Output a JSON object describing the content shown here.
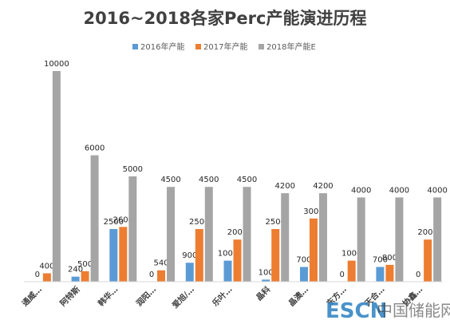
{
  "chart_data": {
    "type": "bar",
    "title": "2016~2018各家Perc产能演进历程",
    "categories": [
      "通威…",
      "阿特斯",
      "韩华…",
      "润阳…",
      "爱旭/…",
      "乐叶…",
      "晶科",
      "晶澳…",
      "东方…",
      "天合…",
      "协鑫…"
    ],
    "series": [
      {
        "name": "2016年产能",
        "values": [
          0,
          240,
          2500,
          0,
          900,
          1000,
          100,
          700,
          0,
          700,
          0
        ]
      },
      {
        "name": "2017年产能",
        "values": [
          400,
          500,
          2600,
          540,
          2500,
          2000,
          2500,
          3000,
          1000,
          800,
          2000
        ]
      },
      {
        "name": "2018年产能E",
        "values": [
          10000,
          6000,
          5000,
          4500,
          4500,
          4500,
          4200,
          4200,
          4000,
          4000,
          4000
        ]
      }
    ],
    "ylim": [
      0,
      10500
    ],
    "grid": false,
    "legend": "top-right",
    "xlabel": "",
    "ylabel": ""
  },
  "colors": {
    "s2016": "#5b9bd5",
    "s2017": "#ed7d31",
    "s2018": "#a5a5a5",
    "axis": "#d9d9d9"
  },
  "watermark": {
    "logo_text": "ESCN",
    "site_text": "中国储能网"
  }
}
